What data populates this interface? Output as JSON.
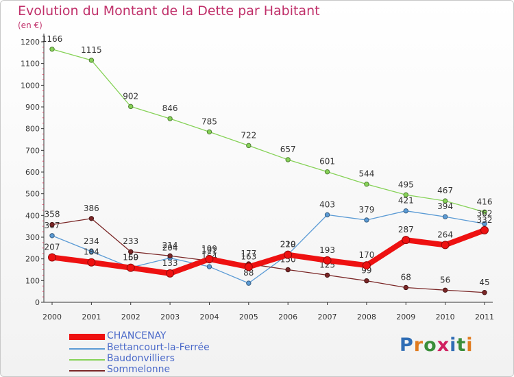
{
  "title": "Evolution du Montant de la Dette par Habitant",
  "subtitle": "(en €)",
  "logo": {
    "text": "Proxiti",
    "letter_colors": [
      "#2f6db5",
      "#e07b1f",
      "#3a8e3a",
      "#d02060",
      "#2f6db5",
      "#3a8e3a",
      "#e07b1f"
    ]
  },
  "chart_data": {
    "type": "line",
    "x": [
      "2000",
      "2001",
      "2002",
      "2003",
      "2004",
      "2005",
      "2006",
      "2007",
      "2008",
      "2009",
      "2010",
      "2011"
    ],
    "yticks": [
      "0",
      "100",
      "200",
      "300",
      "400",
      "500",
      "600",
      "700",
      "800",
      "900",
      "1000",
      "1100",
      "1200"
    ],
    "ylim": [
      0,
      1200
    ],
    "grid": false,
    "legend_position": "bottom-left",
    "series": [
      {
        "name": "Baudonvilliers",
        "color": "#86d257",
        "values": [
          1166,
          1115,
          902,
          846,
          785,
          722,
          657,
          601,
          544,
          495,
          467,
          416
        ],
        "labels": [
          "1166",
          "1115",
          "902",
          "846",
          "785",
          "722",
          "657",
          "601",
          "544",
          "495",
          "467",
          "416"
        ]
      },
      {
        "name": "Bettancourt-la-Ferrée",
        "color": "#5b9bd5",
        "values": [
          307,
          234,
          160,
          204,
          164,
          88,
          220,
          403,
          379,
          421,
          394,
          362
        ],
        "labels": [
          "307",
          "234",
          "160",
          "204",
          "164",
          "88",
          "220",
          "403",
          "379",
          "421",
          "394",
          "362"
        ]
      },
      {
        "name": "Sommelonne",
        "color": "#7a2626",
        "values": [
          358,
          386,
          233,
          214,
          191,
          177,
          150,
          125,
          99,
          68,
          56,
          45
        ],
        "labels": [
          "358",
          "386",
          "233",
          "214",
          "191",
          "177",
          "150",
          "125",
          "99",
          "68",
          "56",
          "45"
        ]
      },
      {
        "name": "CHANCENAY",
        "color": "#ee1111",
        "values": [
          207,
          184,
          159,
          133,
          199,
          163,
          219,
          193,
          170,
          287,
          264,
          332
        ],
        "labels": [
          "207",
          "184",
          "159",
          "133",
          "199",
          "163",
          "219",
          "193",
          "170",
          "287",
          "264",
          "332"
        ]
      }
    ],
    "legend": [
      "CHANCENAY",
      "Bettancourt-la-Ferrée",
      "Baudonvilliers",
      "Sommelonne"
    ]
  }
}
